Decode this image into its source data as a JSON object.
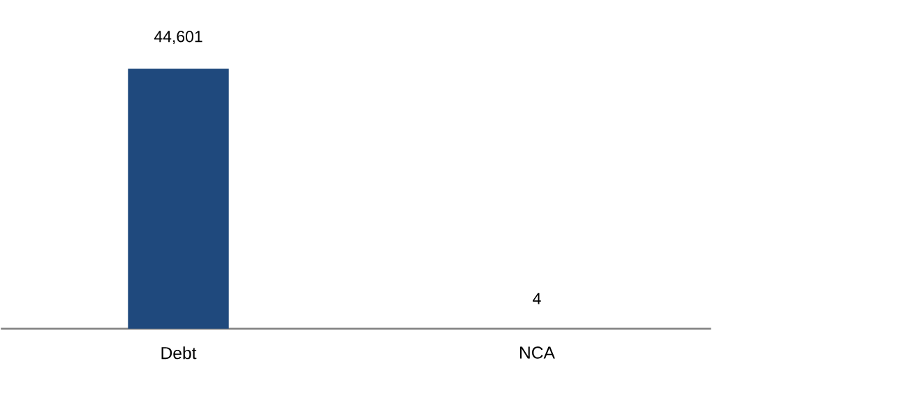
{
  "chart_data": {
    "type": "bar",
    "categories": [
      "Debt",
      "NCA"
    ],
    "values": [
      44601,
      4
    ],
    "value_labels": [
      "44,601",
      "4"
    ],
    "color": "#1f497d"
  }
}
